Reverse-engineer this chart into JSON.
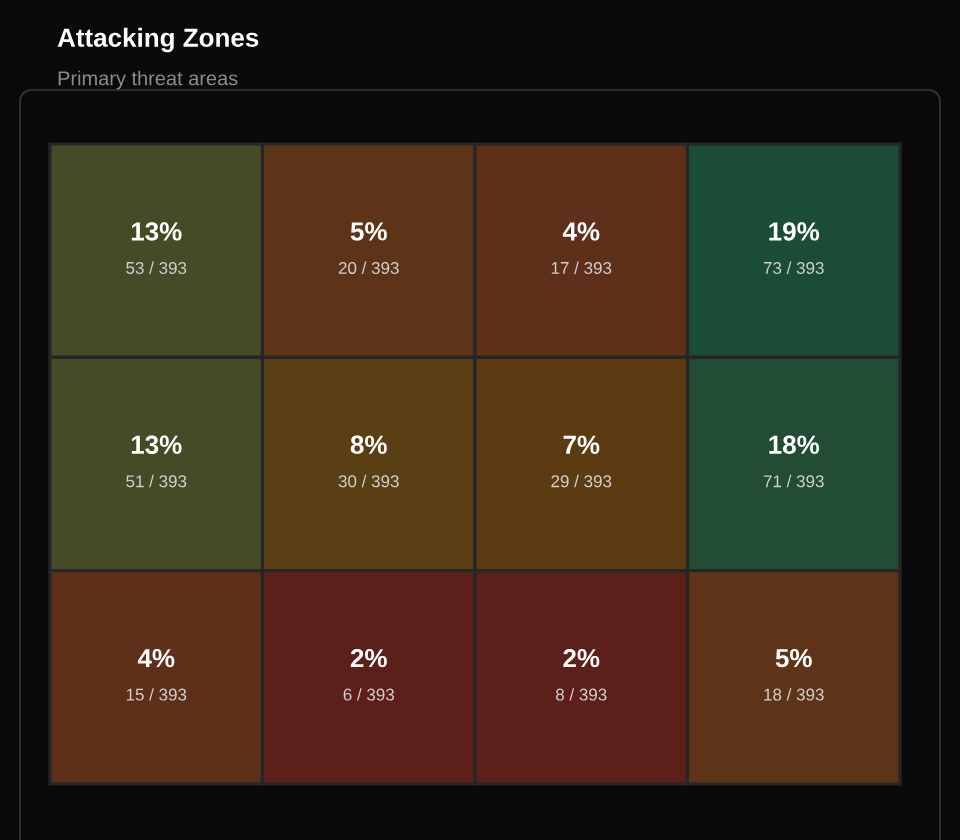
{
  "chart_data": {
    "type": "heatmap",
    "title": "Attacking Zones",
    "subtitle": "Primary threat areas",
    "categories": [
      null,
      null,
      null,
      null
    ],
    "y_categories": [
      null,
      null,
      null
    ],
    "cells": [
      [
        13,
        5,
        4,
        19
      ],
      [
        13,
        8,
        7,
        18
      ],
      [
        4,
        2,
        2,
        5
      ]
    ],
    "cell_labels": [
      [
        "13%",
        "5%",
        "4%",
        "19%"
      ],
      [
        "13%",
        "8%",
        "7%",
        "18%"
      ],
      [
        "4%",
        "2%",
        "2%",
        "5%"
      ]
    ],
    "annotations": [
      "53 / 393",
      "20 / 393",
      "17 / 393",
      "73 / 393",
      "51 / 393",
      "30 / 393",
      "29 / 393",
      "71 / 393",
      "15 / 393",
      "6 / 393",
      "8 / 393",
      "18 / 393"
    ]
  }
}
